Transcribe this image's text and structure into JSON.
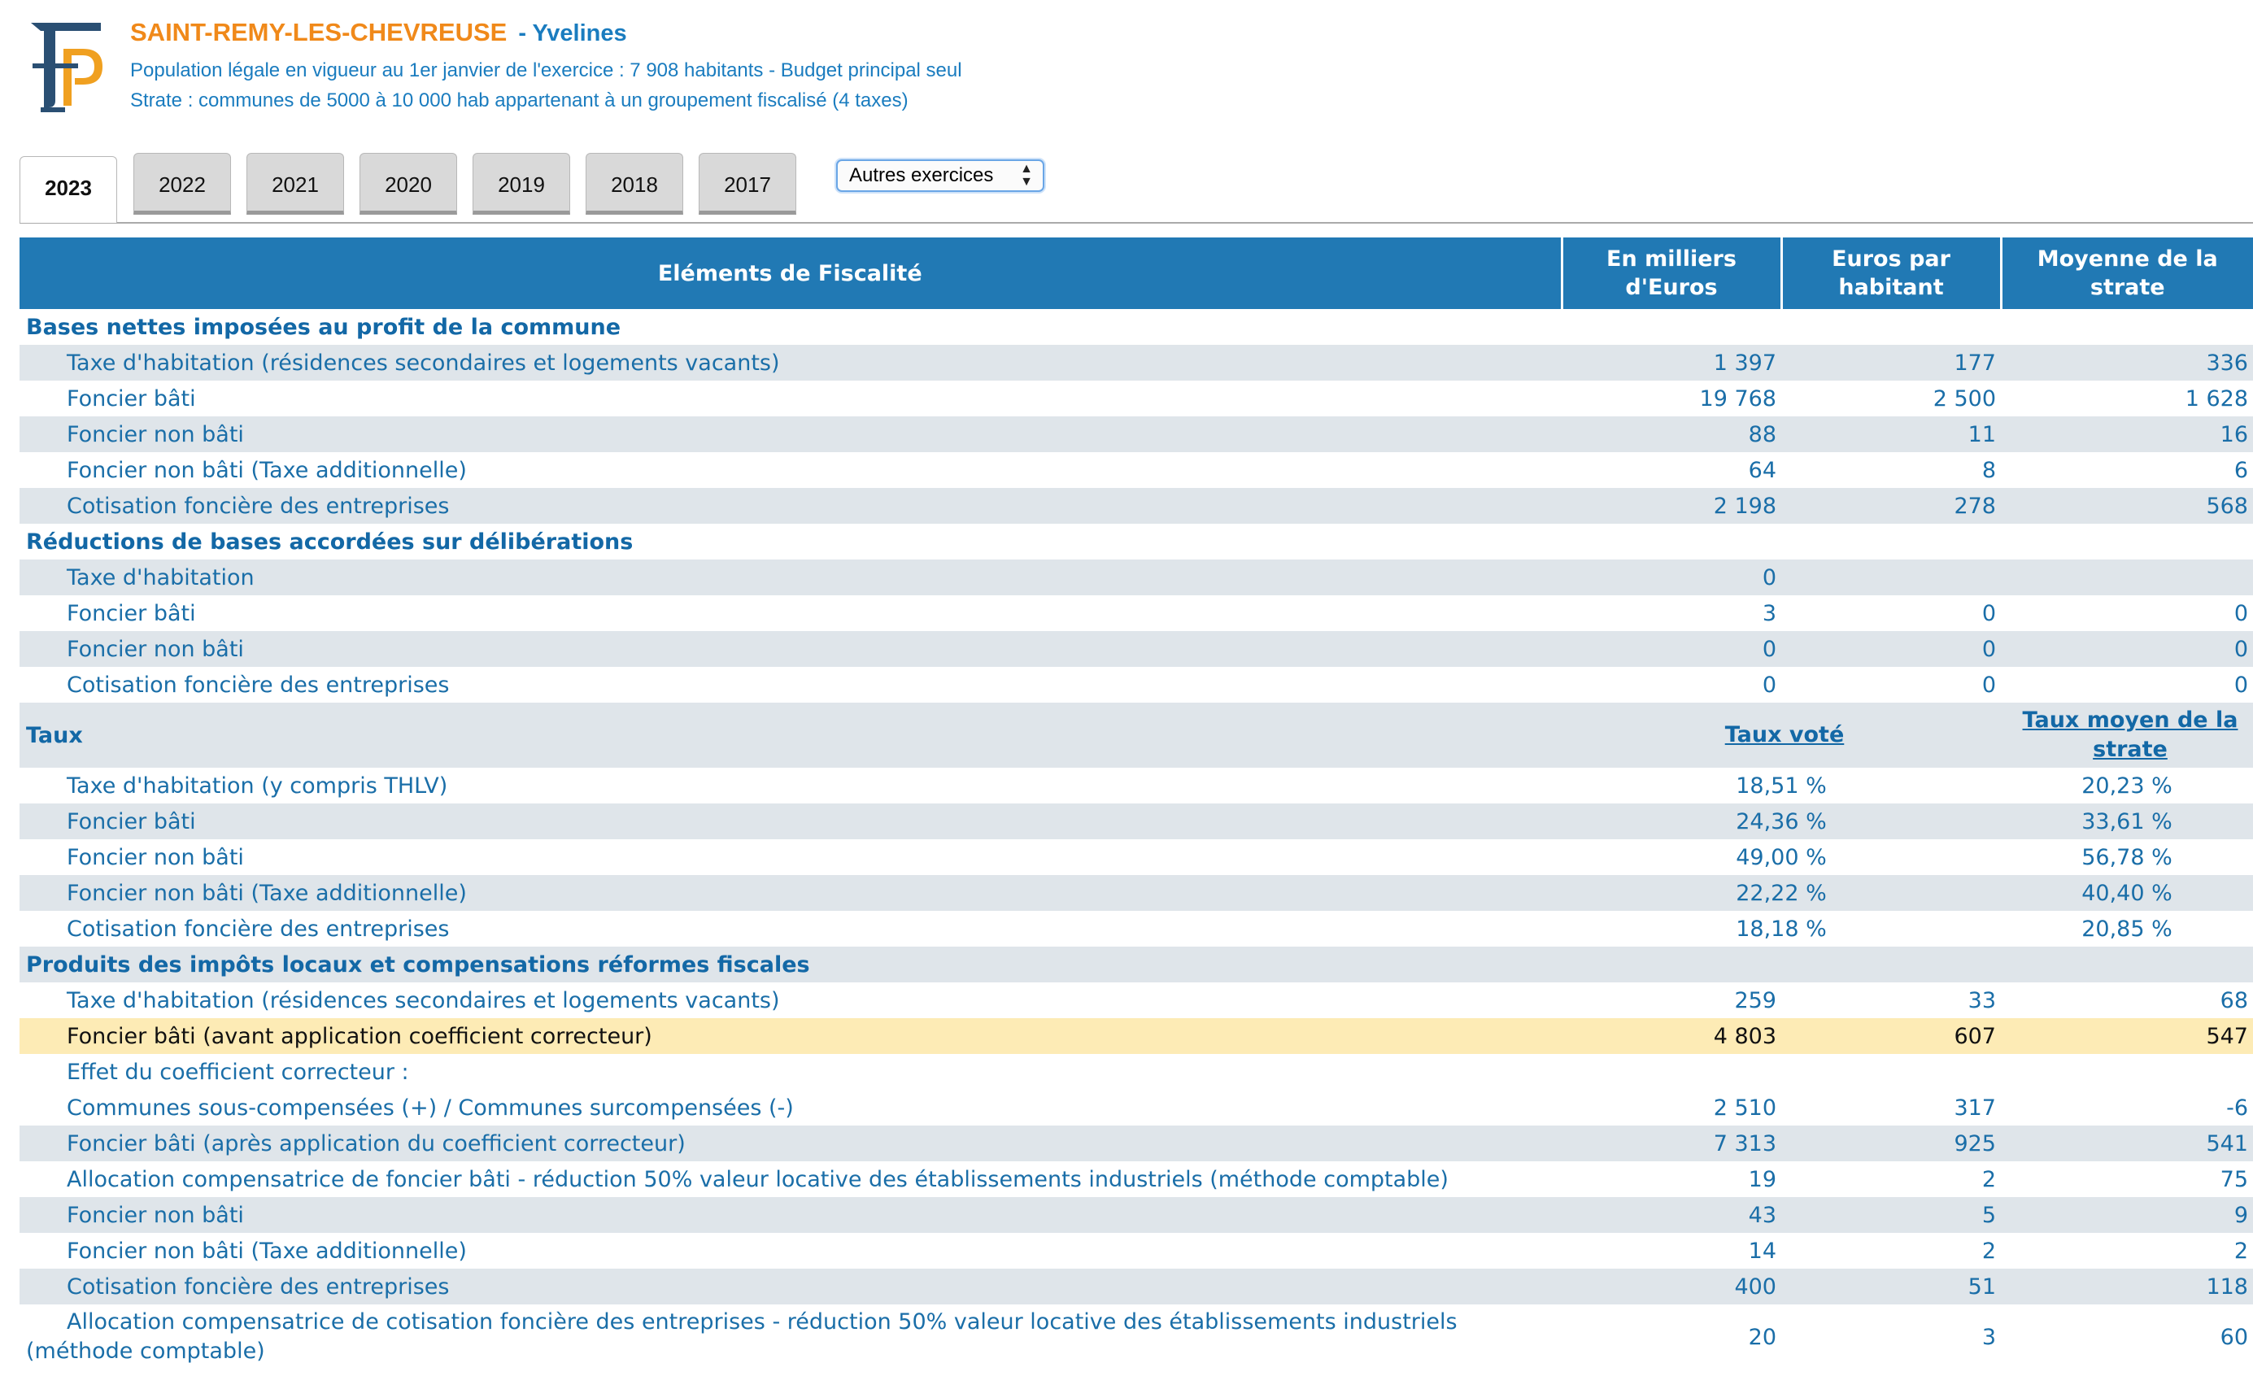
{
  "header": {
    "city": "SAINT-REMY-LES-CHEVREUSE",
    "department": "- Yvelines",
    "population_line": "Population légale en vigueur au 1er janvier de l'exercice : 7 908 habitants - Budget principal seul",
    "strate_line": "Strate : communes de 5000 à 10 000 hab appartenant à un groupement fiscalisé (4 taxes)"
  },
  "tabs": [
    {
      "label": "2023",
      "active": true
    },
    {
      "label": "2022"
    },
    {
      "label": "2021"
    },
    {
      "label": "2020"
    },
    {
      "label": "2019"
    },
    {
      "label": "2018"
    },
    {
      "label": "2017"
    }
  ],
  "year_select": {
    "value": "Autres exercices"
  },
  "table": {
    "headers": {
      "elements": "Eléments de Fiscalité",
      "milliers": "En milliers d'Euros",
      "par_habitant": "Euros par habitant",
      "moyenne": "Moyenne de la strate"
    },
    "sections": {
      "bases": "Bases nettes imposées au profit de la commune",
      "reductions": "Réductions de bases accordées sur délibérations",
      "taux": "Taux",
      "taux_vote": "Taux voté",
      "taux_moyen": "Taux moyen de la strate",
      "produits": "Produits des impôts locaux et compensations réformes fiscales"
    },
    "bases_rows": [
      {
        "label": "Taxe d'habitation (résidences secondaires et logements vacants)",
        "milliers": "1 397",
        "habitant": "177",
        "strate": "336"
      },
      {
        "label": "Foncier bâti",
        "milliers": "19 768",
        "habitant": "2 500",
        "strate": "1 628"
      },
      {
        "label": "Foncier non bâti",
        "milliers": "88",
        "habitant": "11",
        "strate": "16"
      },
      {
        "label": "Foncier non bâti (Taxe additionnelle)",
        "milliers": "64",
        "habitant": "8",
        "strate": "6"
      },
      {
        "label": "Cotisation foncière des entreprises",
        "milliers": "2 198",
        "habitant": "278",
        "strate": "568"
      }
    ],
    "reductions_rows": [
      {
        "label": "Taxe d'habitation",
        "milliers": "0",
        "habitant": "",
        "strate": ""
      },
      {
        "label": "Foncier bâti",
        "milliers": "3",
        "habitant": "0",
        "strate": "0"
      },
      {
        "label": "Foncier non bâti",
        "milliers": "0",
        "habitant": "0",
        "strate": "0"
      },
      {
        "label": "Cotisation foncière des entreprises",
        "milliers": "0",
        "habitant": "0",
        "strate": "0"
      }
    ],
    "taux_rows": [
      {
        "label": "Taxe d'habitation (y compris THLV)",
        "vote": "18,51 %",
        "moyen": "20,23 %"
      },
      {
        "label": "Foncier bâti",
        "vote": "24,36 %",
        "moyen": "33,61 %"
      },
      {
        "label": "Foncier non bâti",
        "vote": "49,00 %",
        "moyen": "56,78 %"
      },
      {
        "label": "Foncier non bâti (Taxe additionnelle)",
        "vote": "22,22 %",
        "moyen": "40,40 %"
      },
      {
        "label": "Cotisation foncière des entreprises",
        "vote": "18,18 %",
        "moyen": "20,85 %"
      }
    ],
    "produits_rows": [
      {
        "label": "Taxe d'habitation (résidences secondaires et logements vacants)",
        "milliers": "259",
        "habitant": "33",
        "strate": "68"
      },
      {
        "label": "Foncier bâti (avant application coefficient correcteur)",
        "milliers": "4 803",
        "habitant": "607",
        "strate": "547"
      },
      {
        "label": "Effet du coefficient correcteur :",
        "milliers": "",
        "habitant": "",
        "strate": ""
      },
      {
        "label": "Communes sous-compensées (+) / Communes surcompensées (-)",
        "milliers": "2 510",
        "habitant": "317",
        "strate": "-6"
      },
      {
        "label": "Foncier bâti (après application du coefficient correcteur)",
        "milliers": "7 313",
        "habitant": "925",
        "strate": "541"
      },
      {
        "label": "Allocation compensatrice de foncier bâti - réduction 50% valeur locative des établissements industriels (méthode comptable)",
        "milliers": "19",
        "habitant": "2",
        "strate": "75"
      },
      {
        "label": "Foncier non bâti",
        "milliers": "43",
        "habitant": "5",
        "strate": "9"
      },
      {
        "label": "Foncier non bâti (Taxe additionnelle)",
        "milliers": "14",
        "habitant": "2",
        "strate": "2"
      },
      {
        "label": "Cotisation foncière des entreprises",
        "milliers": "400",
        "habitant": "51",
        "strate": "118"
      },
      {
        "label": "Allocation compensatrice de cotisation foncière des entreprises - réduction 50% valeur locative des établissements industriels (méthode comptable)",
        "milliers": "20",
        "habitant": "3",
        "strate": "60"
      }
    ]
  },
  "colors": {
    "header_bg": "#2179b4",
    "row_alt": "#dfe5ea",
    "highlight": "#fdebb5",
    "city": "#f0891a",
    "text_blue": "#1a6ea8"
  },
  "icons": {
    "logo": "fp-logo-icon",
    "select_arrows": "updown-arrows-icon"
  }
}
